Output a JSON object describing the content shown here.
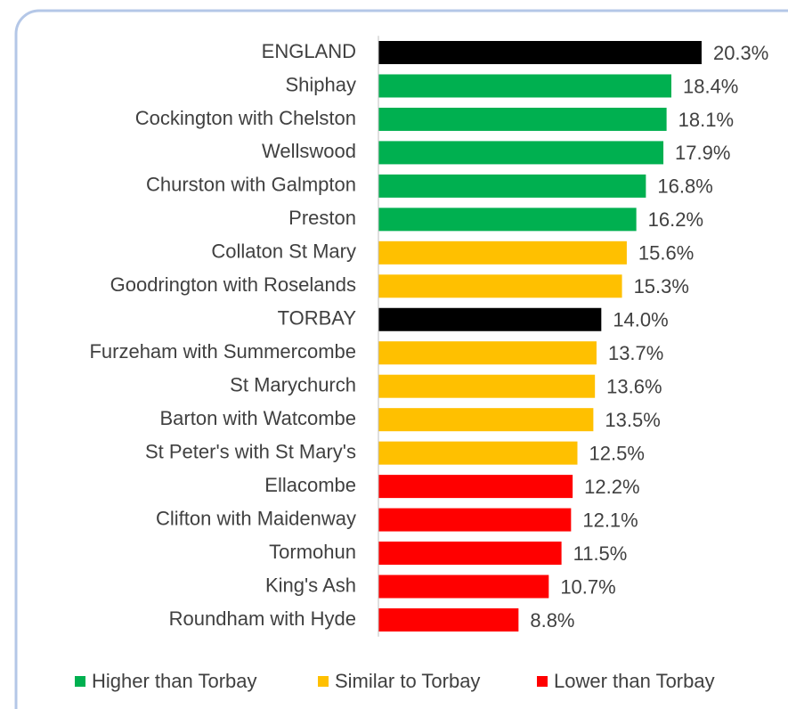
{
  "chart_data": {
    "type": "bar",
    "orientation": "horizontal",
    "categories": [
      "ENGLAND",
      "Shiphay",
      "Cockington with Chelston",
      "Wellswood",
      "Churston with Galmpton",
      "Preston",
      "Collaton St Mary",
      "Goodrington with Roselands",
      "TORBAY",
      "Furzeham with Summercombe",
      "St Marychurch",
      "Barton with Watcombe",
      "St Peter's with St Mary's",
      "Ellacombe",
      "Clifton with Maidenway",
      "Tormohun",
      "King's Ash",
      "Roundham with Hyde"
    ],
    "values": [
      20.3,
      18.4,
      18.1,
      17.9,
      16.8,
      16.2,
      15.6,
      15.3,
      14.0,
      13.7,
      13.6,
      13.5,
      12.5,
      12.2,
      12.1,
      11.5,
      10.7,
      8.8
    ],
    "value_labels": [
      "20.3%",
      "18.4%",
      "18.1%",
      "17.9%",
      "16.8%",
      "16.2%",
      "15.6%",
      "15.3%",
      "14.0%",
      "13.7%",
      "13.6%",
      "13.5%",
      "12.5%",
      "12.2%",
      "12.1%",
      "11.5%",
      "10.7%",
      "8.8%"
    ],
    "colors": [
      "#000000",
      "#00b050",
      "#00b050",
      "#00b050",
      "#00b050",
      "#00b050",
      "#ffc000",
      "#ffc000",
      "#000000",
      "#ffc000",
      "#ffc000",
      "#ffc000",
      "#ffc000",
      "#ff0000",
      "#ff0000",
      "#ff0000",
      "#ff0000",
      "#ff0000"
    ],
    "xlim": [
      0,
      25
    ],
    "legend": [
      {
        "name": "Higher than Torbay",
        "color": "#00b050"
      },
      {
        "name": "Similar to Torbay",
        "color": "#ffc000"
      },
      {
        "name": "Lower than Torbay",
        "color": "#ff0000"
      }
    ],
    "legend_position": "bottom"
  }
}
